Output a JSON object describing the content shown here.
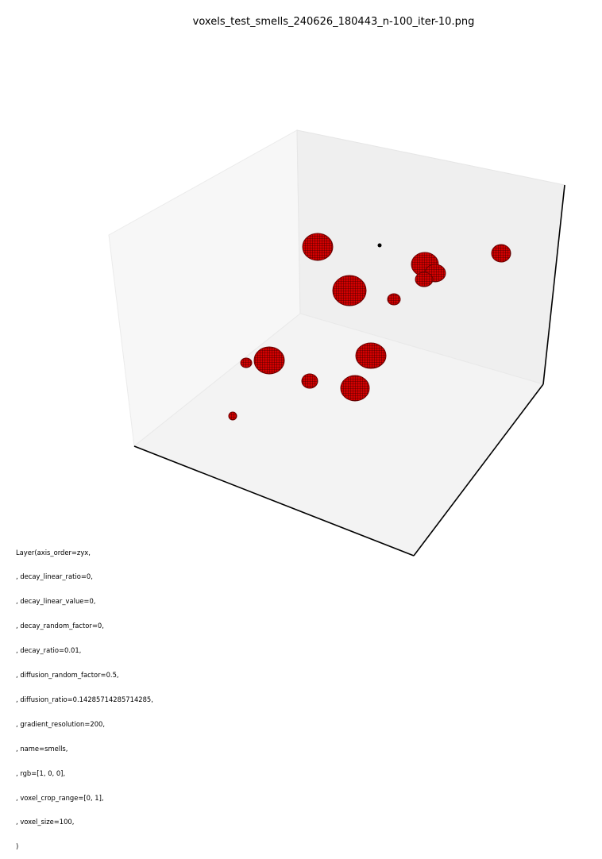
{
  "title": "voxels_test_smells_240626_180443_n-100_iter-10.png",
  "chart_data": {
    "type": "scatter",
    "projection": "3d",
    "title": "voxels_test_smells_240626_180443_n-100_iter-10.png",
    "xlabel": "",
    "ylabel": "",
    "zlabel": "",
    "ticks_visible": false,
    "grid": false,
    "marker": "voxel",
    "color": "#d40000"
  },
  "layer_params": [
    "Layer(axis_order=zyx,",
    ", decay_linear_ratio=0,",
    ", decay_linear_value=0,",
    ", decay_random_factor=0,",
    ", decay_ratio=0.01,",
    ", diffusion_random_factor=0.5,",
    ", diffusion_ratio=0.14285714285714285,",
    ", gradient_resolution=200,",
    ", name=smells,",
    ", rgb=[1, 0, 0],",
    ", voxel_crop_range=[0, 1],",
    ", voxel_size=100,",
    ")"
  ],
  "colors": {
    "voxel": "#d40000",
    "voxel_edge": "#3a0000",
    "pane_left": "#f7f7f7",
    "pane_back": "#efefef",
    "pane_floor": "#f3f3f3",
    "axis_line": "#000000"
  }
}
